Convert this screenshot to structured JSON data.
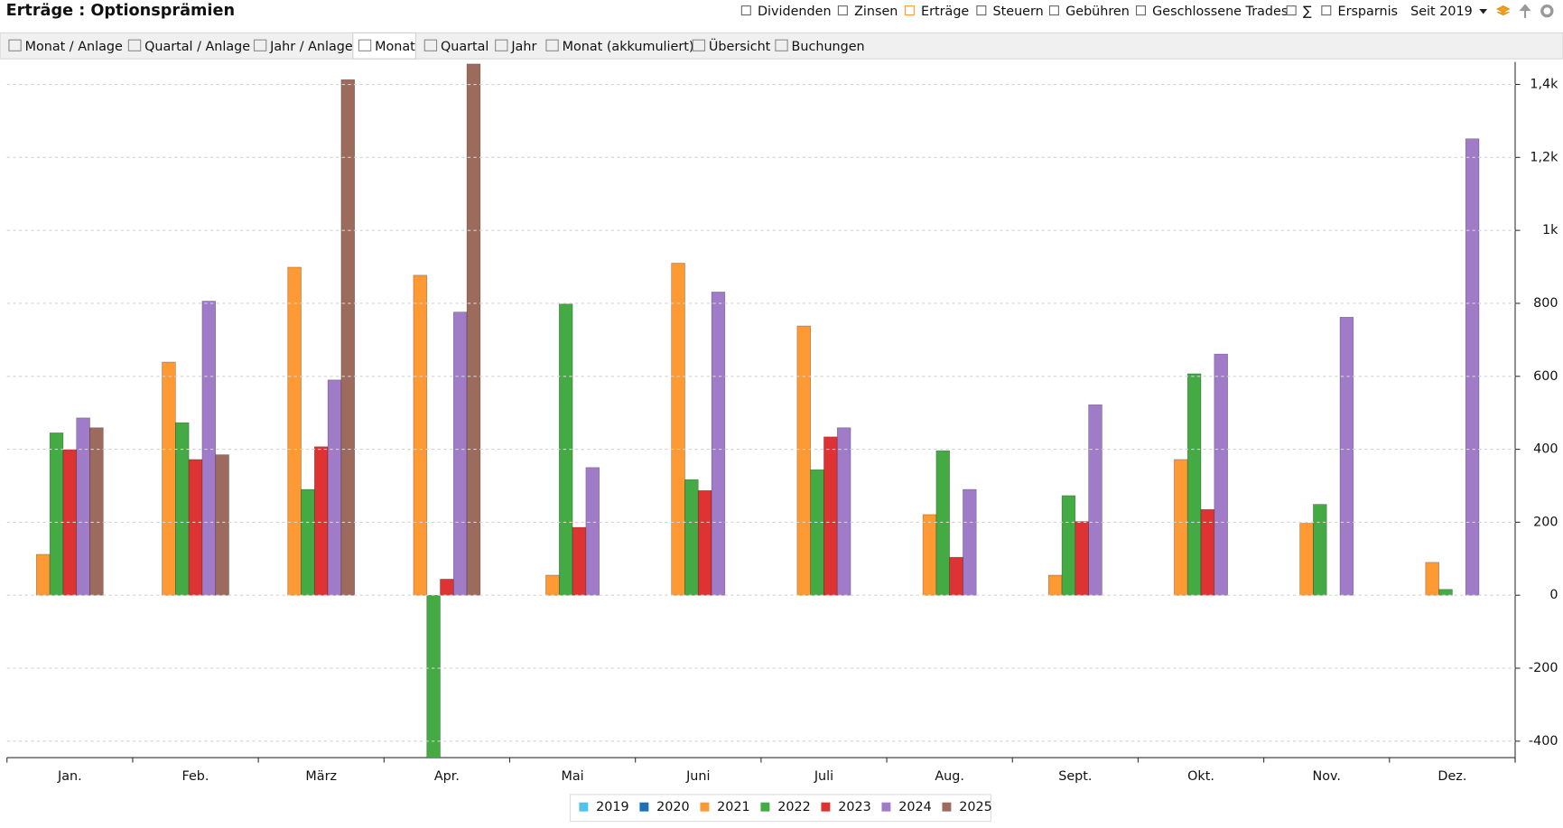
{
  "header": {
    "filters": [
      "Dividenden",
      "Zinsen",
      "Erträge",
      "Steuern",
      "Gebühren",
      "Geschlossene Trades",
      "∑",
      "Ersparnis"
    ],
    "period": "Seit 2019"
  },
  "tabs": [
    "Monat / Anlage",
    "Quartal / Anlage",
    "Jahr / Anlage",
    "Monat",
    "Quartal",
    "Jahr",
    "Monat (akkumuliert)",
    "Übersicht",
    "Buchungen"
  ],
  "chart_data": {
    "type": "bar",
    "title": "Erträge : Optionsprämien",
    "categories": [
      "Jan.",
      "Feb.",
      "März",
      "Apr.",
      "Mai",
      "Juni",
      "Juli",
      "Aug.",
      "Sept.",
      "Okt.",
      "Nov.",
      "Dez."
    ],
    "series": [
      {
        "name": "2019",
        "color": "#4fc3ee",
        "values": [
          null,
          null,
          null,
          null,
          null,
          null,
          null,
          null,
          null,
          null,
          null,
          null
        ]
      },
      {
        "name": "2020",
        "color": "#1f6fb4",
        "values": [
          null,
          null,
          null,
          null,
          null,
          null,
          null,
          null,
          null,
          null,
          null,
          null
        ]
      },
      {
        "name": "2021",
        "color": "#ff9933",
        "values": [
          112,
          639,
          899,
          877,
          55,
          910,
          738,
          221,
          55,
          372,
          197,
          90
        ]
      },
      {
        "name": "2022",
        "color": "#44aa44",
        "values": [
          445,
          473,
          290,
          -450,
          798,
          317,
          344,
          396,
          273,
          607,
          249,
          16
        ]
      },
      {
        "name": "2023",
        "color": "#dd3333",
        "values": [
          399,
          372,
          407,
          44,
          186,
          287,
          434,
          104,
          202,
          235,
          null,
          null
        ]
      },
      {
        "name": "2024",
        "color": "#a07cc8",
        "values": [
          486,
          806,
          590,
          776,
          350,
          831,
          459,
          290,
          522,
          661,
          762,
          1251
        ]
      },
      {
        "name": "2025",
        "color": "#9c6b5e",
        "values": [
          459,
          385,
          1413,
          1456,
          null,
          null,
          null,
          null,
          null,
          null,
          null,
          null
        ]
      }
    ],
    "ylim": [
      -445,
      1462
    ],
    "yticks": [
      -400,
      -200,
      0,
      200,
      400,
      600,
      800,
      {
        "value": 1000,
        "label": "1k"
      },
      {
        "value": 1200,
        "label": "1,2k"
      },
      {
        "value": 1400,
        "label": "1,4k"
      }
    ],
    "grid": true
  }
}
